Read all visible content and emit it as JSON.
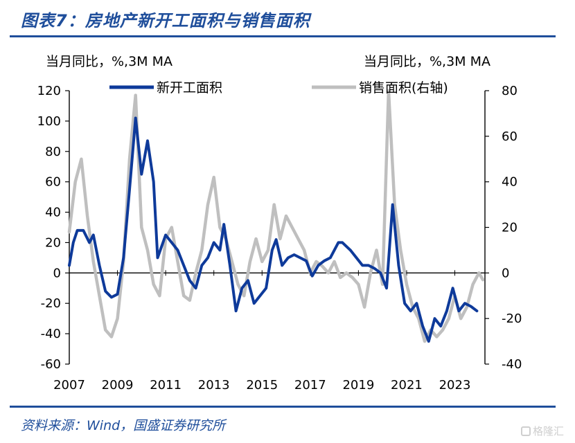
{
  "title": "图表7：房地产新开工面积与销售面积",
  "source": "资料来源：Wind，国盛证券研究所",
  "watermark": "格隆汇",
  "colors": {
    "brand": "#1f4e9b",
    "series_new_starts": "#0e3a9a",
    "series_sales": "#bfbfbf"
  },
  "chart_data": {
    "type": "line",
    "unit_left": "当月同比，%,3M MA",
    "unit_right": "当月同比，%,3M MA",
    "x_ticks": [
      "2007",
      "2009",
      "2011",
      "2013",
      "2015",
      "2017",
      "2019",
      "2021",
      "2023"
    ],
    "y_left": {
      "range": [
        -60,
        120
      ],
      "ticks": [
        "120",
        "100",
        "80",
        "60",
        "40",
        "20",
        "0",
        "-20",
        "-40",
        "-60"
      ]
    },
    "y_right": {
      "range": [
        -40,
        80
      ],
      "ticks": [
        "80",
        "60",
        "40",
        "20",
        "0",
        "-20",
        "-40"
      ]
    },
    "series": [
      {
        "name": "新开工面积",
        "axis": "left",
        "points": [
          [
            "2007-01",
            5
          ],
          [
            "2007-03",
            20
          ],
          [
            "2007-05",
            28
          ],
          [
            "2007-08",
            28
          ],
          [
            "2007-11",
            20
          ],
          [
            "2008-01",
            25
          ],
          [
            "2008-04",
            5
          ],
          [
            "2008-07",
            -12
          ],
          [
            "2008-10",
            -16
          ],
          [
            "2009-01",
            -14
          ],
          [
            "2009-04",
            10
          ],
          [
            "2009-07",
            55
          ],
          [
            "2009-10",
            102
          ],
          [
            "2010-01",
            65
          ],
          [
            "2010-04",
            87
          ],
          [
            "2010-07",
            60
          ],
          [
            "2010-09",
            10
          ],
          [
            "2011-01",
            25
          ],
          [
            "2011-04",
            20
          ],
          [
            "2011-07",
            15
          ],
          [
            "2011-10",
            5
          ],
          [
            "2012-01",
            -5
          ],
          [
            "2012-04",
            -10
          ],
          [
            "2012-07",
            5
          ],
          [
            "2012-10",
            10
          ],
          [
            "2013-01",
            20
          ],
          [
            "2013-04",
            15
          ],
          [
            "2013-06",
            32
          ],
          [
            "2013-09",
            5
          ],
          [
            "2013-12",
            -25
          ],
          [
            "2014-03",
            -10
          ],
          [
            "2014-06",
            -5
          ],
          [
            "2014-09",
            -20
          ],
          [
            "2014-12",
            -15
          ],
          [
            "2015-03",
            -10
          ],
          [
            "2015-06",
            15
          ],
          [
            "2015-08",
            22
          ],
          [
            "2015-11",
            5
          ],
          [
            "2016-02",
            10
          ],
          [
            "2016-05",
            12
          ],
          [
            "2016-08",
            10
          ],
          [
            "2016-11",
            8
          ],
          [
            "2017-02",
            -2
          ],
          [
            "2017-05",
            5
          ],
          [
            "2017-08",
            8
          ],
          [
            "2017-11",
            10
          ],
          [
            "2018-03",
            20
          ],
          [
            "2018-05",
            20
          ],
          [
            "2018-09",
            15
          ],
          [
            "2018-12",
            10
          ],
          [
            "2019-03",
            5
          ],
          [
            "2019-06",
            5
          ],
          [
            "2019-09",
            3
          ],
          [
            "2019-12",
            0
          ],
          [
            "2020-03",
            -10
          ],
          [
            "2020-06",
            45
          ],
          [
            "2020-09",
            5
          ],
          [
            "2020-12",
            -20
          ],
          [
            "2021-03",
            -25
          ],
          [
            "2021-06",
            -20
          ],
          [
            "2021-09",
            -35
          ],
          [
            "2021-12",
            -45
          ],
          [
            "2022-03",
            -30
          ],
          [
            "2022-06",
            -35
          ],
          [
            "2022-09",
            -25
          ],
          [
            "2022-12",
            -10
          ],
          [
            "2023-03",
            -25
          ],
          [
            "2023-06",
            -20
          ],
          [
            "2023-09",
            -22
          ],
          [
            "2023-12",
            -25
          ]
        ]
      },
      {
        "name": "销售面积(右轴)",
        "axis": "right",
        "points": [
          [
            "2007-01",
            18
          ],
          [
            "2007-04",
            40
          ],
          [
            "2007-07",
            50
          ],
          [
            "2007-10",
            25
          ],
          [
            "2008-01",
            5
          ],
          [
            "2008-04",
            -10
          ],
          [
            "2008-07",
            -25
          ],
          [
            "2008-10",
            -28
          ],
          [
            "2009-01",
            -20
          ],
          [
            "2009-04",
            5
          ],
          [
            "2009-07",
            50
          ],
          [
            "2009-10",
            78
          ],
          [
            "2010-01",
            20
          ],
          [
            "2010-04",
            10
          ],
          [
            "2010-07",
            -5
          ],
          [
            "2010-10",
            -10
          ],
          [
            "2011-01",
            15
          ],
          [
            "2011-04",
            20
          ],
          [
            "2011-07",
            5
          ],
          [
            "2011-10",
            -10
          ],
          [
            "2012-01",
            -12
          ],
          [
            "2012-04",
            0
          ],
          [
            "2012-07",
            10
          ],
          [
            "2012-10",
            30
          ],
          [
            "2013-01",
            42
          ],
          [
            "2013-04",
            20
          ],
          [
            "2013-07",
            15
          ],
          [
            "2013-10",
            5
          ],
          [
            "2014-01",
            -5
          ],
          [
            "2014-04",
            -10
          ],
          [
            "2014-07",
            5
          ],
          [
            "2014-10",
            15
          ],
          [
            "2015-01",
            5
          ],
          [
            "2015-04",
            10
          ],
          [
            "2015-07",
            30
          ],
          [
            "2015-10",
            15
          ],
          [
            "2016-01",
            25
          ],
          [
            "2016-04",
            20
          ],
          [
            "2016-07",
            15
          ],
          [
            "2016-10",
            10
          ],
          [
            "2017-01",
            0
          ],
          [
            "2017-04",
            5
          ],
          [
            "2017-07",
            3
          ],
          [
            "2017-10",
            0
          ],
          [
            "2018-01",
            5
          ],
          [
            "2018-04",
            -2
          ],
          [
            "2018-07",
            0
          ],
          [
            "2018-10",
            -2
          ],
          [
            "2019-01",
            -5
          ],
          [
            "2019-04",
            -15
          ],
          [
            "2019-07",
            0
          ],
          [
            "2019-10",
            10
          ],
          [
            "2020-01",
            -5
          ],
          [
            "2020-04",
            80
          ],
          [
            "2020-07",
            30
          ],
          [
            "2020-10",
            10
          ],
          [
            "2021-01",
            -5
          ],
          [
            "2021-04",
            -15
          ],
          [
            "2021-07",
            -20
          ],
          [
            "2021-10",
            -30
          ],
          [
            "2022-01",
            -25
          ],
          [
            "2022-04",
            -28
          ],
          [
            "2022-07",
            -25
          ],
          [
            "2022-10",
            -20
          ],
          [
            "2023-01",
            -10
          ],
          [
            "2023-04",
            -20
          ],
          [
            "2023-07",
            -15
          ],
          [
            "2023-10",
            -5
          ],
          [
            "2024-01",
            0
          ],
          [
            "2024-03",
            -3
          ]
        ]
      }
    ]
  }
}
